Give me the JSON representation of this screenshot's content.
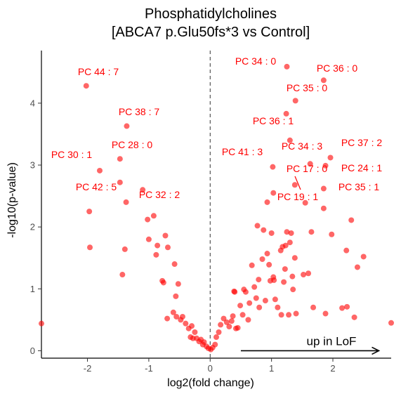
{
  "chart_data": {
    "type": "scatter",
    "title": [
      "Phosphatidylcholines",
      "[ABCA7 p.Glu50fs*3 vs Control]"
    ],
    "xlabel": "log2(fold change)",
    "ylabel": "-log10(p-value)",
    "xlim": [
      -2.75,
      2.95
    ],
    "ylim": [
      -0.12,
      4.85
    ],
    "xticks": [
      -2,
      -1,
      0,
      1,
      2
    ],
    "yticks": [
      0,
      1,
      2,
      3,
      4
    ],
    "grid": false,
    "reference_line_x": 0,
    "point_color": "#ff0000",
    "annotation": "up in LoF",
    "annotation_arrow": {
      "from_x": 0.5,
      "to_x": 2.75,
      "y": 0.0
    },
    "labeled_points": [
      {
        "label": "PC 44 : 7",
        "x": -2.02,
        "y": 4.28
      },
      {
        "label": "PC 38 : 7",
        "x": -1.36,
        "y": 3.63
      },
      {
        "label": "PC 28 : 0",
        "x": -1.47,
        "y": 3.1
      },
      {
        "label": "PC 30 : 1",
        "x": -1.8,
        "y": 2.91
      },
      {
        "label": "PC 42 : 5",
        "x": -1.47,
        "y": 2.72
      },
      {
        "label": "PC 32 : 2",
        "x": -1.37,
        "y": 2.4
      },
      {
        "label": "PC 34 : 0",
        "x": 1.25,
        "y": 4.59
      },
      {
        "label": "PC 36 : 0",
        "x": 1.85,
        "y": 4.37
      },
      {
        "label": "PC 35 : 0",
        "x": 1.39,
        "y": 4.04
      },
      {
        "label": "PC 36 : 1",
        "x": 1.24,
        "y": 3.83
      },
      {
        "label": "PC 34 : 3",
        "x": 1.63,
        "y": 3.02
      },
      {
        "label": "PC 41 : 3",
        "x": 1.02,
        "y": 2.97
      },
      {
        "label": "PC 37 : 2",
        "x": 1.96,
        "y": 3.12
      },
      {
        "label": "PC 17 : 0",
        "x": 1.38,
        "y": 2.68
      },
      {
        "label": "PC 24 : 1",
        "x": 1.88,
        "y": 2.99
      },
      {
        "label": "PC 35 : 1",
        "x": 1.85,
        "y": 2.62
      },
      {
        "label": "PC 19 : 1",
        "x": 1.3,
        "y": 3.4
      }
    ],
    "other_points": [
      {
        "x": -2.75,
        "y": 0.44
      },
      {
        "x": -1.96,
        "y": 1.67
      },
      {
        "x": -1.97,
        "y": 2.25
      },
      {
        "x": -1.43,
        "y": 1.23
      },
      {
        "x": -1.39,
        "y": 1.64
      },
      {
        "x": -1.1,
        "y": 2.6
      },
      {
        "x": -1.02,
        "y": 2.12
      },
      {
        "x": -0.92,
        "y": 2.18
      },
      {
        "x": -1.0,
        "y": 1.8
      },
      {
        "x": -0.86,
        "y": 1.7
      },
      {
        "x": -0.88,
        "y": 1.55
      },
      {
        "x": -0.73,
        "y": 1.86
      },
      {
        "x": -0.69,
        "y": 1.67
      },
      {
        "x": -0.78,
        "y": 1.13
      },
      {
        "x": -0.76,
        "y": 1.1
      },
      {
        "x": -0.58,
        "y": 1.4
      },
      {
        "x": -0.52,
        "y": 1.08
      },
      {
        "x": -0.56,
        "y": 0.88
      },
      {
        "x": -0.7,
        "y": 0.52
      },
      {
        "x": -0.6,
        "y": 0.62
      },
      {
        "x": -0.55,
        "y": 0.55
      },
      {
        "x": -0.48,
        "y": 0.5
      },
      {
        "x": -0.45,
        "y": 0.55
      },
      {
        "x": -0.4,
        "y": 0.44
      },
      {
        "x": -0.35,
        "y": 0.36
      },
      {
        "x": -0.3,
        "y": 0.4
      },
      {
        "x": -0.25,
        "y": 0.3
      },
      {
        "x": -0.32,
        "y": 0.22
      },
      {
        "x": -0.28,
        "y": 0.2
      },
      {
        "x": -0.22,
        "y": 0.2
      },
      {
        "x": -0.18,
        "y": 0.15
      },
      {
        "x": -0.15,
        "y": 0.18
      },
      {
        "x": -0.12,
        "y": 0.1
      },
      {
        "x": -0.1,
        "y": 0.14
      },
      {
        "x": -0.06,
        "y": 0.07
      },
      {
        "x": -0.03,
        "y": 0.04
      },
      {
        "x": 0.01,
        "y": 0.02
      },
      {
        "x": 0.04,
        "y": 0.05
      },
      {
        "x": 0.08,
        "y": 0.1
      },
      {
        "x": 0.1,
        "y": 0.22
      },
      {
        "x": 0.14,
        "y": 0.3
      },
      {
        "x": 0.17,
        "y": 0.42
      },
      {
        "x": 0.22,
        "y": 0.52
      },
      {
        "x": 0.27,
        "y": 0.46
      },
      {
        "x": 0.31,
        "y": 0.39
      },
      {
        "x": 0.35,
        "y": 0.48
      },
      {
        "x": 0.37,
        "y": 0.56
      },
      {
        "x": 0.42,
        "y": 0.36
      },
      {
        "x": 0.45,
        "y": 0.37
      },
      {
        "x": 0.39,
        "y": 0.96
      },
      {
        "x": 0.4,
        "y": 0.95
      },
      {
        "x": 0.49,
        "y": 0.73
      },
      {
        "x": 0.53,
        "y": 0.58
      },
      {
        "x": 0.55,
        "y": 0.99
      },
      {
        "x": 0.58,
        "y": 0.95
      },
      {
        "x": 0.62,
        "y": 0.5
      },
      {
        "x": 0.64,
        "y": 0.77
      },
      {
        "x": 0.68,
        "y": 1.38
      },
      {
        "x": 0.72,
        "y": 1.03
      },
      {
        "x": 0.75,
        "y": 0.85
      },
      {
        "x": 0.79,
        "y": 1.15
      },
      {
        "x": 0.77,
        "y": 2.02
      },
      {
        "x": 0.8,
        "y": 0.7
      },
      {
        "x": 0.85,
        "y": 1.48
      },
      {
        "x": 0.87,
        "y": 1.95
      },
      {
        "x": 0.9,
        "y": 0.81
      },
      {
        "x": 0.93,
        "y": 1.57
      },
      {
        "x": 0.96,
        "y": 1.39
      },
      {
        "x": 0.98,
        "y": 1.13
      },
      {
        "x": 0.93,
        "y": 2.4
      },
      {
        "x": 1.03,
        "y": 2.55
      },
      {
        "x": 1.04,
        "y": 1.14
      },
      {
        "x": 1.03,
        "y": 1.19
      },
      {
        "x": 1.06,
        "y": 0.83
      },
      {
        "x": 1.0,
        "y": 1.9
      },
      {
        "x": 1.1,
        "y": 0.7
      },
      {
        "x": 1.15,
        "y": 1.62
      },
      {
        "x": 1.18,
        "y": 1.68
      },
      {
        "x": 1.2,
        "y": 1.11
      },
      {
        "x": 1.16,
        "y": 0.58
      },
      {
        "x": 1.23,
        "y": 1.7
      },
      {
        "x": 1.25,
        "y": 1.92
      },
      {
        "x": 1.22,
        "y": 1.32
      },
      {
        "x": 1.28,
        "y": 0.58
      },
      {
        "x": 1.3,
        "y": 1.75
      },
      {
        "x": 1.32,
        "y": 1.9
      },
      {
        "x": 1.34,
        "y": 1.2
      },
      {
        "x": 1.38,
        "y": 1.5
      },
      {
        "x": 1.35,
        "y": 0.99
      },
      {
        "x": 1.4,
        "y": 0.6
      },
      {
        "x": 1.52,
        "y": 1.23
      },
      {
        "x": 1.55,
        "y": 2.39
      },
      {
        "x": 1.6,
        "y": 1.25
      },
      {
        "x": 1.65,
        "y": 1.92
      },
      {
        "x": 1.68,
        "y": 0.7
      },
      {
        "x": 1.85,
        "y": 2.3
      },
      {
        "x": 1.88,
        "y": 0.6
      },
      {
        "x": 1.98,
        "y": 1.88
      },
      {
        "x": 2.15,
        "y": 0.69
      },
      {
        "x": 2.23,
        "y": 0.71
      },
      {
        "x": 2.22,
        "y": 1.62
      },
      {
        "x": 2.3,
        "y": 2.11
      },
      {
        "x": 2.4,
        "y": 1.35
      },
      {
        "x": 2.5,
        "y": 1.52
      },
      {
        "x": 2.35,
        "y": 0.54
      },
      {
        "x": 2.95,
        "y": 0.45
      }
    ]
  }
}
